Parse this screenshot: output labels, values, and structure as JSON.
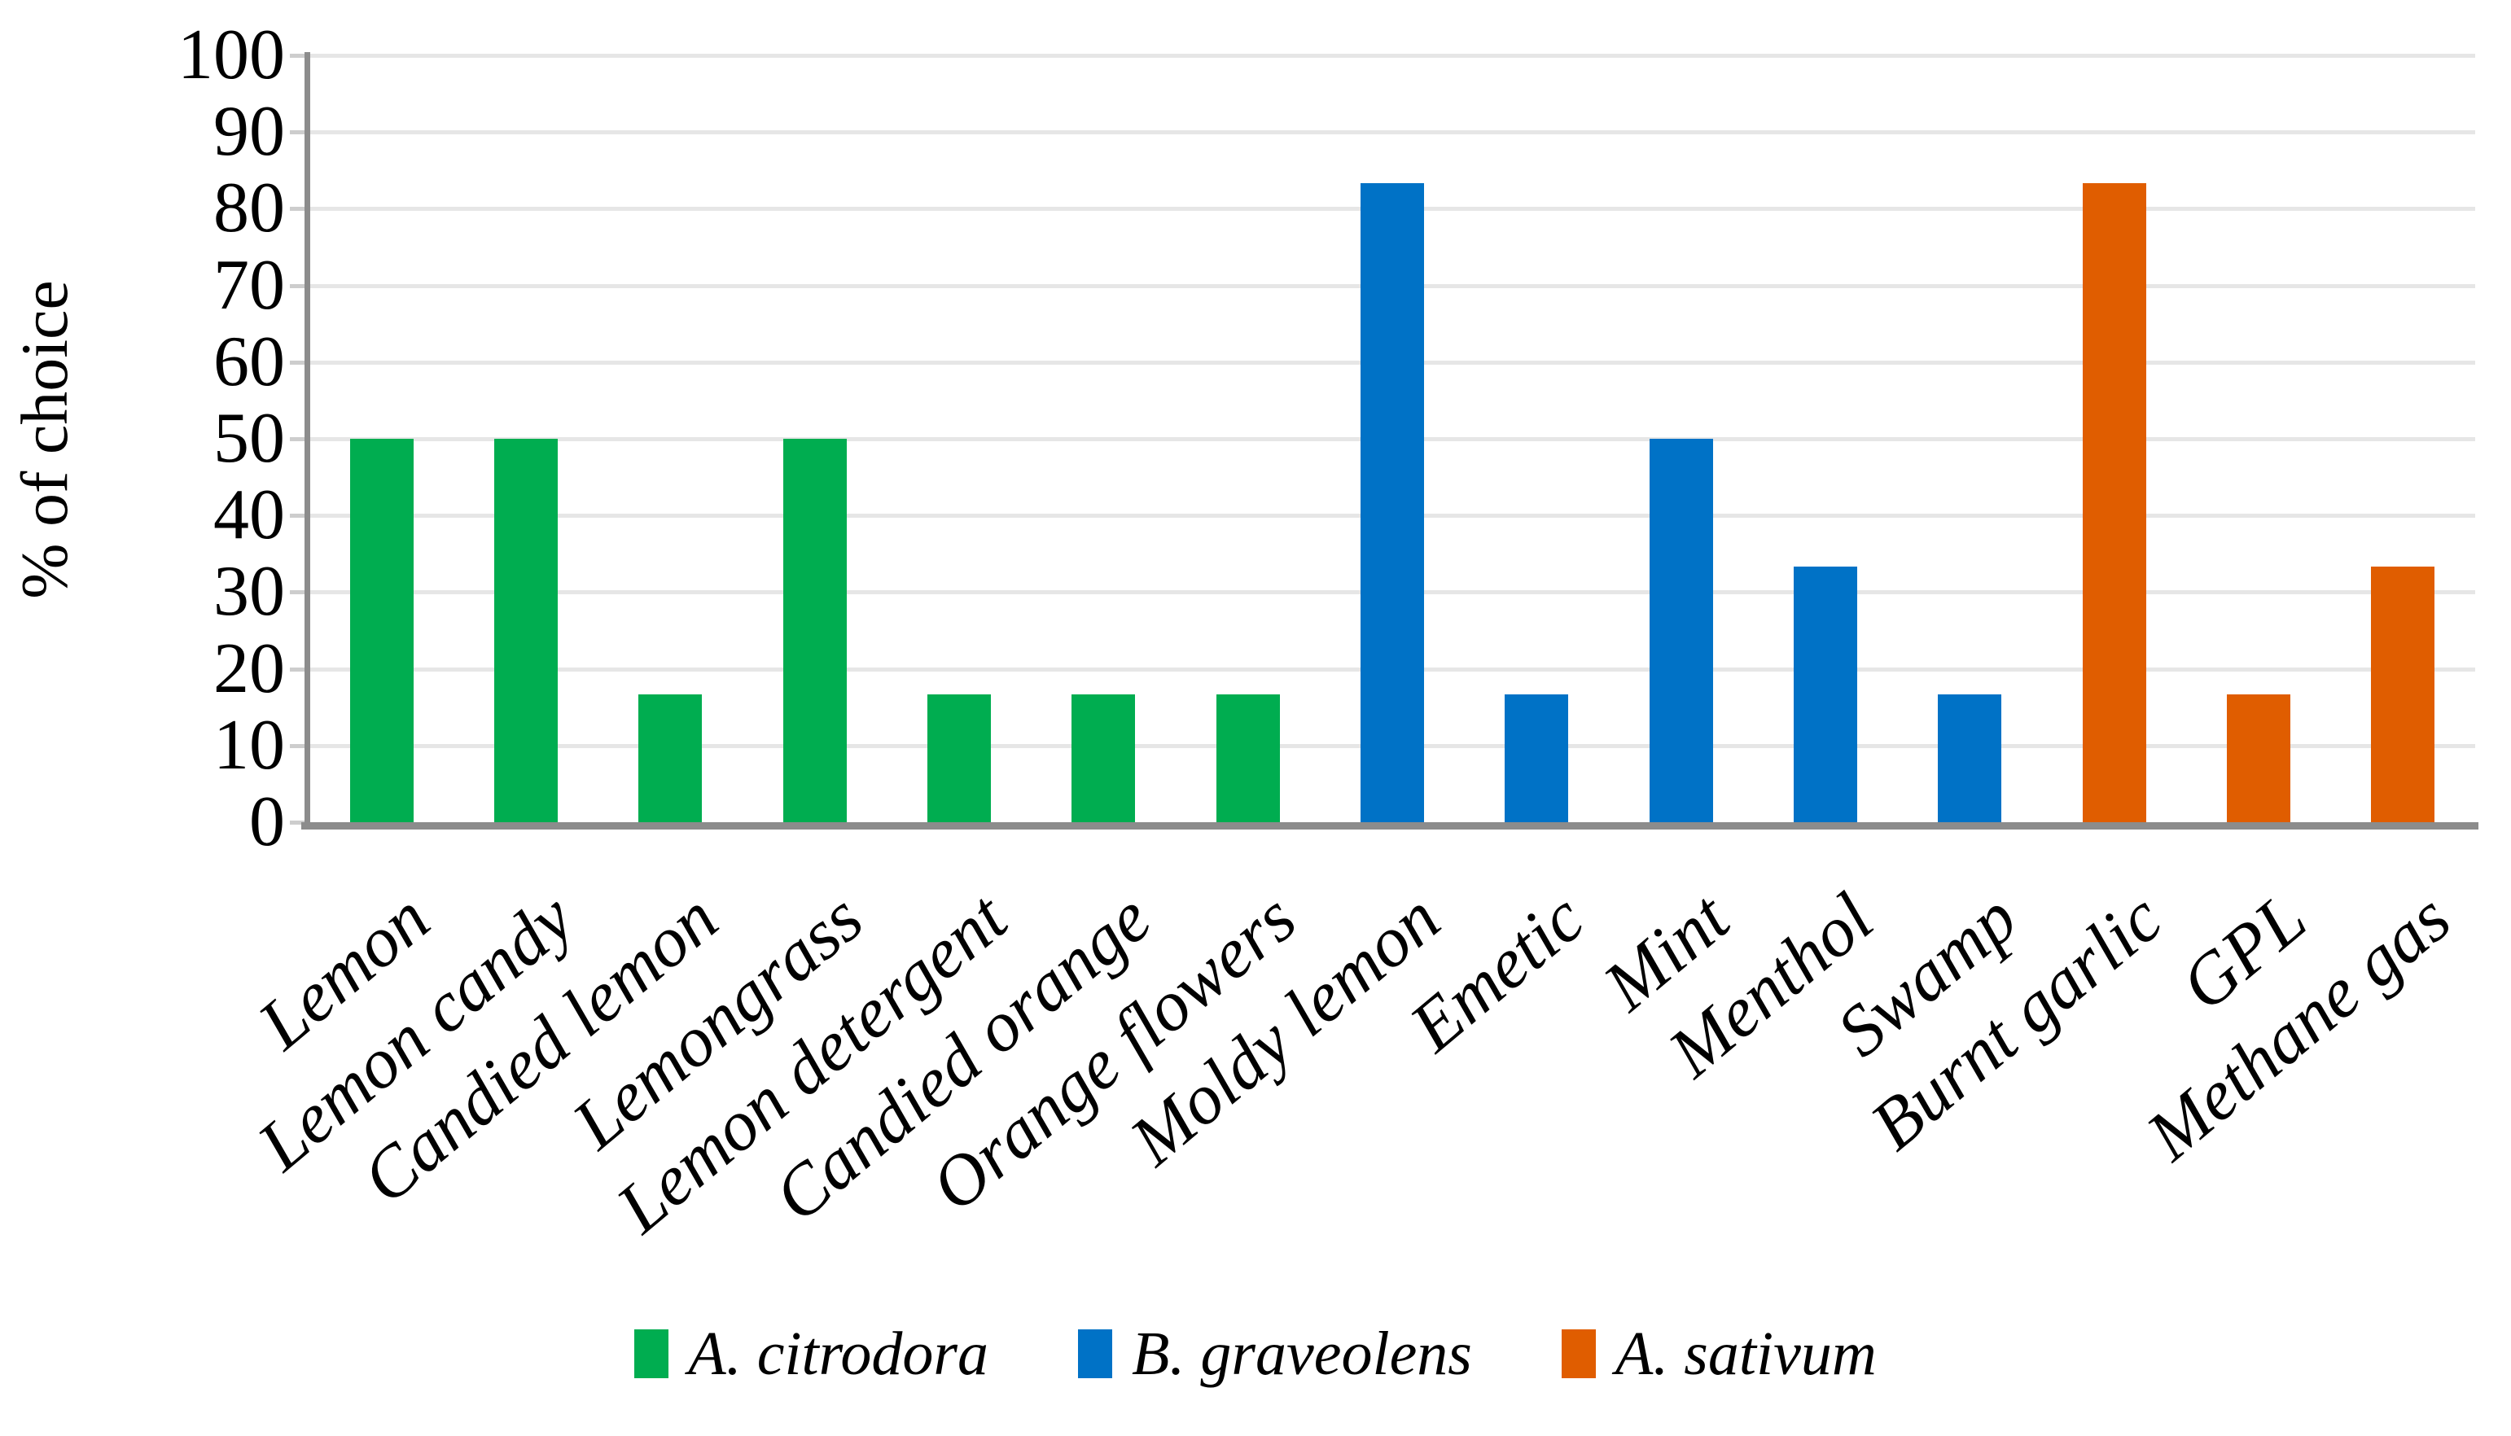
{
  "chart_data": {
    "type": "bar",
    "title": "",
    "xlabel": "",
    "ylabel": "% of choice",
    "ylim": [
      0,
      100
    ],
    "yticks": [
      0,
      10,
      20,
      30,
      40,
      50,
      60,
      70,
      80,
      90,
      100
    ],
    "grid": "horizontal",
    "legend_position": "bottom",
    "categories": [
      "Lemon",
      "Lemon candy",
      "Candied lemon",
      "Lemongrass",
      "Lemon detergent",
      "Candied orange",
      "Orange flowers",
      "Moldy lemon",
      "Emetic",
      "Mint",
      "Menthol",
      "Swamp",
      "Burnt garlic",
      "GPL",
      "Methane gas"
    ],
    "series": [
      {
        "name": "A. citrodora",
        "color": "#00ad50",
        "values": [
          50,
          50,
          16.7,
          50,
          16.7,
          16.7,
          16.7,
          null,
          null,
          null,
          null,
          null,
          null,
          null,
          null
        ]
      },
      {
        "name": "B. graveolens",
        "color": "#0072c6",
        "values": [
          null,
          null,
          null,
          null,
          null,
          null,
          null,
          83.3,
          16.7,
          50,
          33.3,
          16.7,
          null,
          null,
          null
        ]
      },
      {
        "name": "A. sativum",
        "color": "#e05d00",
        "values": [
          null,
          null,
          null,
          null,
          null,
          null,
          null,
          null,
          null,
          null,
          null,
          null,
          83.3,
          16.7,
          33.3
        ]
      }
    ]
  },
  "legend": {
    "items": [
      {
        "label": "A. citrodora",
        "color": "#00ad50"
      },
      {
        "label": "B. graveolens",
        "color": "#0072c6"
      },
      {
        "label": "A. sativum",
        "color": "#e05d00"
      }
    ]
  },
  "style": {
    "gridline_color": "#e6e6e6",
    "axis_color": "#8c8c8c",
    "tick_color": "#cdcdcd"
  }
}
